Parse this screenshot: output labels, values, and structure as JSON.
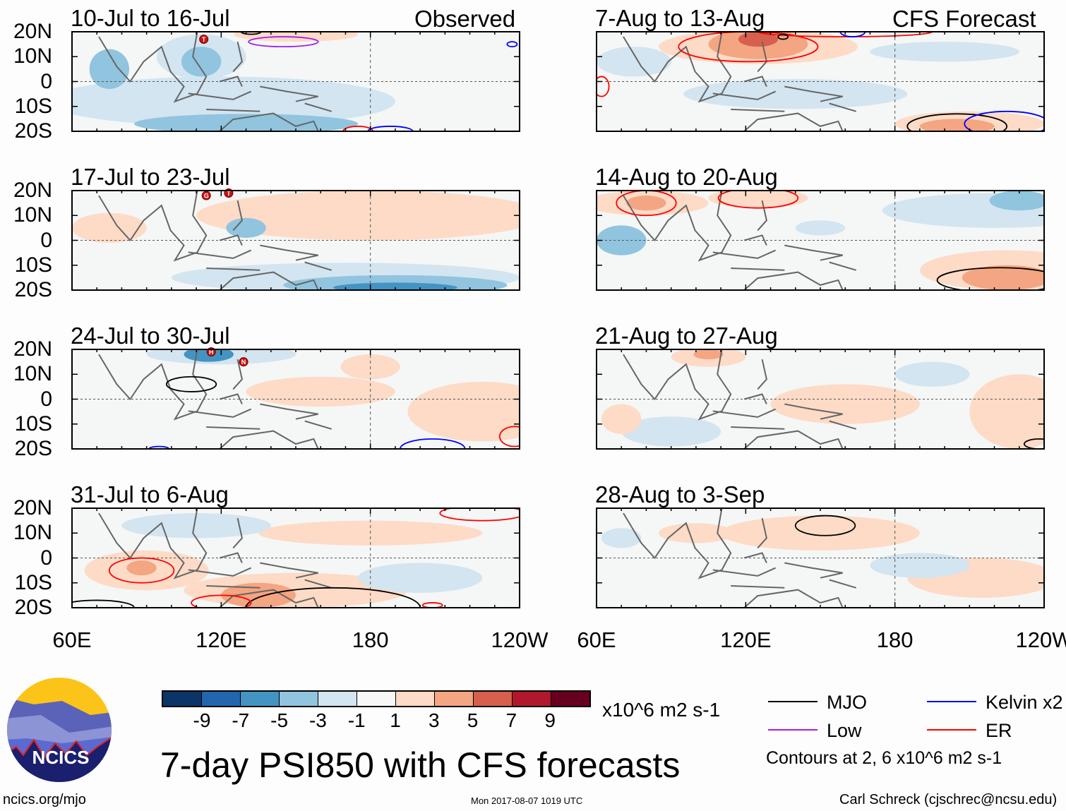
{
  "header": {
    "observed_label": "Observed",
    "forecast_label": "CFS Forecast"
  },
  "axes": {
    "lat_ticks": [
      "20N",
      "10N",
      "0",
      "10S",
      "20S"
    ],
    "lon_ticks": [
      "60E",
      "120E",
      "180",
      "120W"
    ],
    "lon_values": [
      60,
      120,
      180,
      240
    ],
    "lat_range": [
      -20,
      20
    ],
    "lon_range": [
      60,
      240
    ]
  },
  "panels": [
    {
      "title": "10-Jul to 16-Jul",
      "blobs": [
        [
          120,
          -8,
          70,
          10,
          -1
        ],
        [
          112,
          10,
          18,
          9,
          -1
        ],
        [
          112,
          8,
          8,
          6,
          -3
        ],
        [
          130,
          -17,
          45,
          4,
          -3
        ],
        [
          75,
          5,
          8,
          8,
          -3
        ],
        [
          150,
          19,
          25,
          3,
          1
        ]
      ],
      "contours": [
        [
          145,
          16,
          14,
          2,
          "Low"
        ],
        [
          175,
          -20,
          6,
          2,
          "ER"
        ],
        [
          188,
          -20,
          9,
          2,
          "Kelvin"
        ],
        [
          132,
          20,
          4,
          1,
          "MJO"
        ],
        [
          237,
          15,
          2,
          1,
          "Kelvin"
        ]
      ],
      "storms": [
        [
          113,
          17,
          "T"
        ]
      ]
    },
    {
      "title": "17-Jul to 23-Jul",
      "blobs": [
        [
          180,
          10,
          70,
          10,
          1
        ],
        [
          75,
          5,
          15,
          6,
          1
        ],
        [
          170,
          -15,
          70,
          6,
          -1
        ],
        [
          190,
          -18,
          45,
          4,
          -3
        ],
        [
          190,
          -19,
          25,
          2,
          -5
        ],
        [
          130,
          5,
          8,
          4,
          -3
        ]
      ],
      "contours": [],
      "storms": [
        [
          114,
          18,
          "G"
        ],
        [
          123,
          19,
          "T"
        ]
      ]
    },
    {
      "title": "24-Jul to 30-Jul",
      "blobs": [
        [
          120,
          18,
          30,
          4,
          -1
        ],
        [
          115,
          18,
          10,
          3,
          -5
        ],
        [
          225,
          -5,
          30,
          12,
          1
        ],
        [
          160,
          3,
          30,
          6,
          1
        ],
        [
          180,
          13,
          12,
          5,
          1
        ]
      ],
      "contours": [
        [
          108,
          6,
          10,
          3,
          "MJO"
        ],
        [
          205,
          -20,
          13,
          4,
          "Kelvin"
        ],
        [
          238,
          -15,
          6,
          4,
          "ER"
        ],
        [
          95,
          -20,
          4,
          1,
          "Kelvin"
        ]
      ],
      "storms": [
        [
          116,
          19,
          "H"
        ],
        [
          129,
          15,
          "N"
        ]
      ]
    },
    {
      "title": "31-Jul to 6-Aug",
      "blobs": [
        [
          90,
          -5,
          25,
          8,
          1
        ],
        [
          88,
          -4,
          6,
          3,
          3
        ],
        [
          150,
          -13,
          45,
          7,
          1
        ],
        [
          135,
          -15,
          15,
          5,
          3
        ],
        [
          180,
          10,
          45,
          5,
          1
        ],
        [
          200,
          -8,
          25,
          6,
          -1
        ],
        [
          110,
          13,
          30,
          5,
          -1
        ]
      ],
      "contours": [
        [
          88,
          -5,
          13,
          5,
          "ER"
        ],
        [
          225,
          18,
          17,
          3,
          "ER"
        ],
        [
          165,
          -20,
          35,
          8,
          "MJO"
        ],
        [
          70,
          -20,
          15,
          3,
          "MJO"
        ],
        [
          120,
          -18,
          12,
          3,
          "ER"
        ],
        [
          205,
          -19,
          4,
          1,
          "ER"
        ]
      ],
      "storms": []
    },
    {
      "title": "7-Aug to 13-Aug",
      "blobs": [
        [
          125,
          14,
          40,
          7,
          1
        ],
        [
          125,
          15,
          20,
          6,
          3
        ],
        [
          125,
          17,
          8,
          3,
          5
        ],
        [
          75,
          8,
          15,
          6,
          -1
        ],
        [
          140,
          -5,
          45,
          6,
          -1
        ],
        [
          210,
          -17,
          30,
          5,
          1
        ],
        [
          205,
          -18,
          15,
          3,
          3
        ],
        [
          200,
          12,
          30,
          4,
          -1
        ]
      ],
      "contours": [
        [
          121,
          14,
          28,
          6,
          "ER"
        ],
        [
          160,
          20,
          35,
          2,
          "ER"
        ],
        [
          205,
          -18,
          20,
          5,
          "MJO"
        ],
        [
          225,
          -17,
          17,
          5,
          "Kelvin"
        ],
        [
          135,
          18,
          2,
          1,
          "MJO"
        ],
        [
          163,
          20,
          5,
          2,
          "Kelvin"
        ],
        [
          62,
          -2,
          3,
          4,
          "ER"
        ]
      ],
      "storms": []
    },
    {
      "title": "14-Aug to 20-Aug",
      "blobs": [
        [
          80,
          15,
          25,
          5,
          1
        ],
        [
          80,
          15,
          8,
          3,
          3
        ],
        [
          125,
          17,
          20,
          4,
          1
        ],
        [
          220,
          12,
          45,
          7,
          -1
        ],
        [
          230,
          16,
          12,
          4,
          -3
        ],
        [
          225,
          -12,
          35,
          8,
          1
        ],
        [
          225,
          -15,
          18,
          5,
          3
        ],
        [
          70,
          0,
          10,
          6,
          -3
        ],
        [
          150,
          5,
          10,
          3,
          -1
        ]
      ],
      "contours": [
        [
          80,
          15,
          12,
          5,
          "ER"
        ],
        [
          125,
          17,
          16,
          4,
          "ER"
        ],
        [
          222,
          -16,
          25,
          5,
          "MJO"
        ]
      ],
      "storms": []
    },
    {
      "title": "21-Aug to 27-Aug",
      "blobs": [
        [
          105,
          17,
          15,
          4,
          1
        ],
        [
          105,
          18,
          6,
          2,
          3
        ],
        [
          230,
          -5,
          20,
          15,
          1
        ],
        [
          160,
          -2,
          30,
          8,
          1
        ],
        [
          195,
          10,
          15,
          5,
          -1
        ],
        [
          90,
          -13,
          20,
          6,
          -1
        ],
        [
          70,
          -8,
          8,
          6,
          1
        ]
      ],
      "contours": [
        [
          238,
          -18,
          6,
          2,
          "MJO"
        ]
      ],
      "storms": []
    },
    {
      "title": "28-Aug to 3-Sep",
      "blobs": [
        [
          150,
          10,
          40,
          7,
          1
        ],
        [
          215,
          -8,
          30,
          8,
          1
        ],
        [
          190,
          -3,
          20,
          5,
          -1
        ],
        [
          70,
          8,
          8,
          4,
          -1
        ],
        [
          100,
          10,
          15,
          4,
          1
        ]
      ],
      "contours": [
        [
          152,
          13,
          12,
          4,
          "MJO"
        ]
      ],
      "storms": []
    }
  ],
  "colorbar": {
    "colors": [
      "#0b3567",
      "#2267ad",
      "#4394c3",
      "#91c4de",
      "#d2e5f0",
      "#f7f7f7",
      "#fddbc7",
      "#f4a582",
      "#d6604d",
      "#b2182b",
      "#67001f"
    ],
    "labels": [
      "-9",
      "-7",
      "-5",
      "-3",
      "-1",
      "1",
      "3",
      "5",
      "7",
      "9"
    ],
    "units": "x10^6 m2 s-1"
  },
  "legend": {
    "items": [
      {
        "label": "MJO",
        "color": "#000000"
      },
      {
        "label": "Kelvin x2",
        "color": "#0000ff"
      },
      {
        "label": "Low",
        "color": "#a020f0"
      },
      {
        "label": "ER",
        "color": "#ff0000"
      }
    ],
    "note": "Contours at 2, 6 x10^6 m2 s-1"
  },
  "title": "7-day PSI850 with CFS forecasts",
  "footer": {
    "url": "ncics.org/mjo",
    "timestamp": "Mon 2017-08-07 1019 UTC",
    "author": "Carl Schreck (cjschrec@ncsu.edu)"
  },
  "logo": {
    "text": "NCICS"
  }
}
